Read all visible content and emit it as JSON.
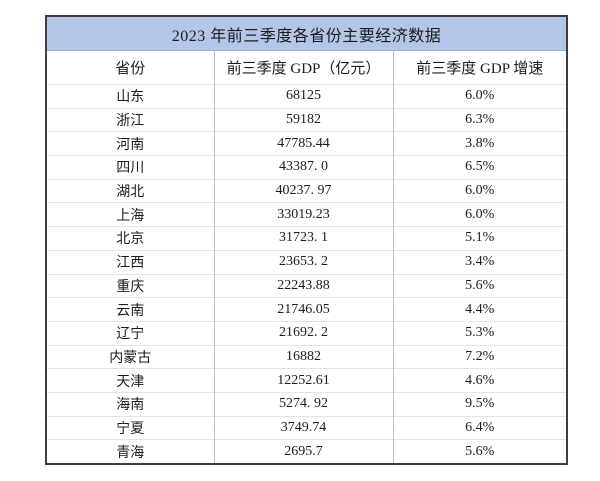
{
  "chart_data": {
    "type": "table",
    "title": "2023 年前三季度各省份主要经济数据",
    "columns": [
      "省份",
      "前三季度 GDP（亿元）",
      "前三季度 GDP 增速"
    ],
    "rows": [
      [
        "山东",
        "68125",
        "6.0%"
      ],
      [
        "浙江",
        "59182",
        "6.3%"
      ],
      [
        "河南",
        "47785.44",
        "3.8%"
      ],
      [
        "四川",
        "43387. 0",
        "6.5%"
      ],
      [
        "湖北",
        "40237. 97",
        "6.0%"
      ],
      [
        "上海",
        "33019.23",
        "6.0%"
      ],
      [
        "北京",
        "31723. 1",
        "5.1%"
      ],
      [
        "江西",
        "23653. 2",
        "3.4%"
      ],
      [
        "重庆",
        "22243.88",
        "5.6%"
      ],
      [
        "云南",
        "21746.05",
        "4.4%"
      ],
      [
        "辽宁",
        "21692. 2",
        "5.3%"
      ],
      [
        "内蒙古",
        "16882",
        "7.2%"
      ],
      [
        "天津",
        "12252.61",
        "4.6%"
      ],
      [
        "海南",
        "5274. 92",
        "9.5%"
      ],
      [
        "宁夏",
        "3749.74",
        "6.4%"
      ],
      [
        "青海",
        "2695.7",
        "5.6%"
      ]
    ]
  },
  "colors": {
    "title_background": "#b4c6e7",
    "outer_border": "#3e3e3e",
    "grid_vertical": "#bcbcbc",
    "grid_horizontal": "#e4e4e4",
    "text": "#1c1c1c",
    "page_background": "#ffffff"
  }
}
